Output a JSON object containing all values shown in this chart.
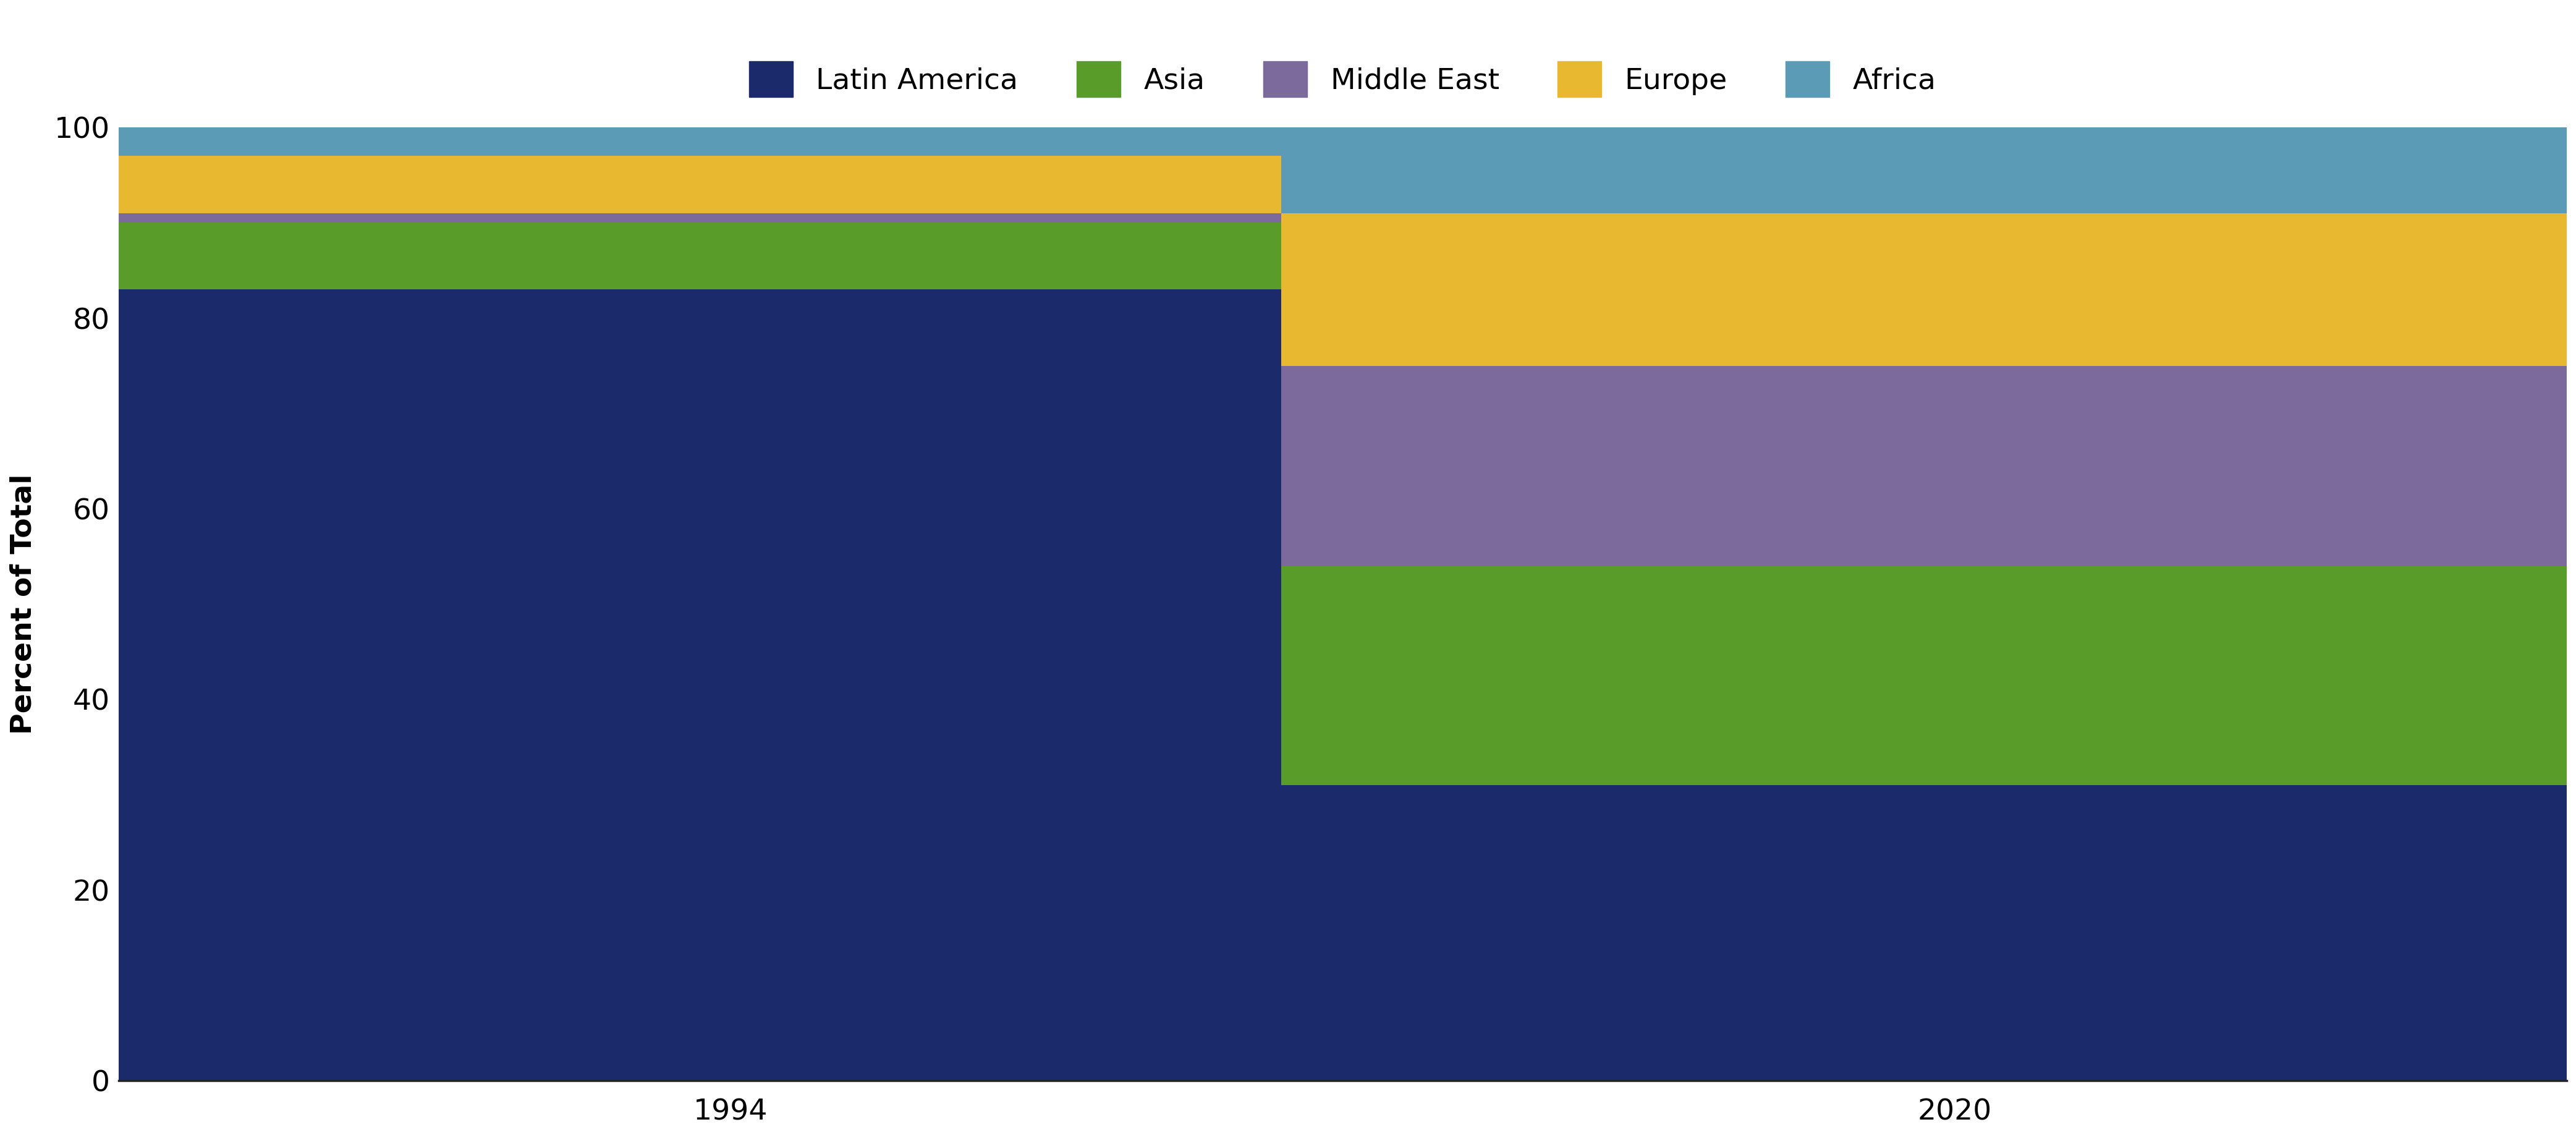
{
  "categories": [
    "1994",
    "2020"
  ],
  "regions": [
    "Latin America",
    "Asia",
    "Middle East",
    "Europe",
    "Africa"
  ],
  "values": {
    "Latin America": [
      83,
      31
    ],
    "Asia": [
      7,
      23
    ],
    "Middle East": [
      1,
      21
    ],
    "Europe": [
      6,
      16
    ],
    "Africa": [
      3,
      9
    ]
  },
  "colors": {
    "Latin America": "#1B2A6B",
    "Asia": "#5A9C2A",
    "Middle East": "#7B6A9B",
    "Europe": "#E8B830",
    "Africa": "#5B9BB5"
  },
  "ylabel": "Percent of Total",
  "ylim": [
    0,
    100
  ],
  "yticks": [
    0,
    20,
    40,
    60,
    80,
    100
  ],
  "bar_width": 0.55,
  "x_positions": [
    0.25,
    0.75
  ],
  "xlim": [
    0.0,
    1.0
  ],
  "background_color": "#ffffff",
  "grid_color": "#cccccc",
  "legend_fontsize": 34,
  "axis_label_fontsize": 34,
  "tick_fontsize": 34
}
